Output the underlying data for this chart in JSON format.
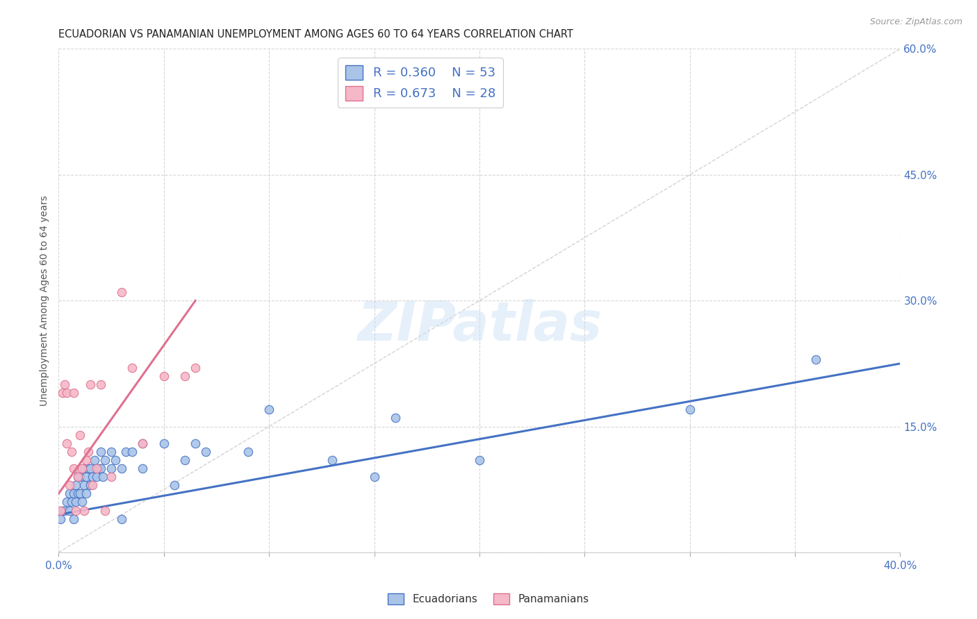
{
  "title": "ECUADORIAN VS PANAMANIAN UNEMPLOYMENT AMONG AGES 60 TO 64 YEARS CORRELATION CHART",
  "source": "Source: ZipAtlas.com",
  "ylabel": "Unemployment Among Ages 60 to 64 years",
  "xlim": [
    0.0,
    0.4
  ],
  "ylim": [
    0.0,
    0.6
  ],
  "xticks": [
    0.0,
    0.05,
    0.1,
    0.15,
    0.2,
    0.25,
    0.3,
    0.35,
    0.4
  ],
  "yticks": [
    0.0,
    0.15,
    0.3,
    0.45,
    0.6
  ],
  "yticklabels_right": [
    "",
    "15.0%",
    "30.0%",
    "45.0%",
    "60.0%"
  ],
  "grid_color": "#cccccc",
  "background_color": "#ffffff",
  "watermark": "ZIPatlas",
  "ecuadorians": {
    "R": 0.36,
    "N": 53,
    "color": "#aac4e8",
    "edge_color": "#4472c4",
    "line_color": "#4472c4",
    "scatter_x": [
      0.001,
      0.002,
      0.003,
      0.004,
      0.005,
      0.005,
      0.006,
      0.007,
      0.007,
      0.008,
      0.008,
      0.009,
      0.009,
      0.01,
      0.01,
      0.011,
      0.012,
      0.012,
      0.013,
      0.013,
      0.014,
      0.015,
      0.015,
      0.016,
      0.017,
      0.018,
      0.019,
      0.02,
      0.02,
      0.021,
      0.022,
      0.025,
      0.025,
      0.027,
      0.03,
      0.03,
      0.032,
      0.035,
      0.04,
      0.04,
      0.05,
      0.055,
      0.06,
      0.065,
      0.07,
      0.09,
      0.1,
      0.13,
      0.15,
      0.16,
      0.2,
      0.3,
      0.36
    ],
    "scatter_y": [
      0.04,
      0.05,
      0.05,
      0.06,
      0.05,
      0.07,
      0.06,
      0.04,
      0.07,
      0.06,
      0.08,
      0.07,
      0.09,
      0.07,
      0.09,
      0.06,
      0.08,
      0.1,
      0.07,
      0.09,
      0.1,
      0.08,
      0.1,
      0.09,
      0.11,
      0.09,
      0.1,
      0.1,
      0.12,
      0.09,
      0.11,
      0.1,
      0.12,
      0.11,
      0.04,
      0.1,
      0.12,
      0.12,
      0.1,
      0.13,
      0.13,
      0.08,
      0.11,
      0.13,
      0.12,
      0.12,
      0.17,
      0.11,
      0.09,
      0.16,
      0.11,
      0.17,
      0.23
    ],
    "trend_x": [
      0.0,
      0.4
    ],
    "trend_y": [
      0.045,
      0.225
    ]
  },
  "panamanians": {
    "R": 0.673,
    "N": 28,
    "color": "#f5b8c8",
    "edge_color": "#e07090",
    "line_color": "#e07090",
    "scatter_x": [
      0.001,
      0.002,
      0.003,
      0.004,
      0.004,
      0.005,
      0.006,
      0.007,
      0.007,
      0.008,
      0.009,
      0.01,
      0.011,
      0.012,
      0.013,
      0.014,
      0.015,
      0.016,
      0.018,
      0.02,
      0.022,
      0.025,
      0.03,
      0.035,
      0.04,
      0.05,
      0.06,
      0.065
    ],
    "scatter_y": [
      0.05,
      0.19,
      0.2,
      0.13,
      0.19,
      0.08,
      0.12,
      0.1,
      0.19,
      0.05,
      0.09,
      0.14,
      0.1,
      0.05,
      0.11,
      0.12,
      0.2,
      0.08,
      0.1,
      0.2,
      0.05,
      0.09,
      0.31,
      0.22,
      0.13,
      0.21,
      0.21,
      0.22
    ],
    "trend_x": [
      0.0,
      0.065
    ],
    "trend_y": [
      0.07,
      0.3
    ]
  },
  "dashed_line": {
    "x": [
      0.0,
      0.4
    ],
    "y": [
      0.0,
      0.6
    ],
    "color": "#c8c8c8"
  },
  "title_fontsize": 10.5,
  "axis_label_fontsize": 10,
  "tick_fontsize": 11,
  "marker_size": 80,
  "marker_lw": 0.8
}
